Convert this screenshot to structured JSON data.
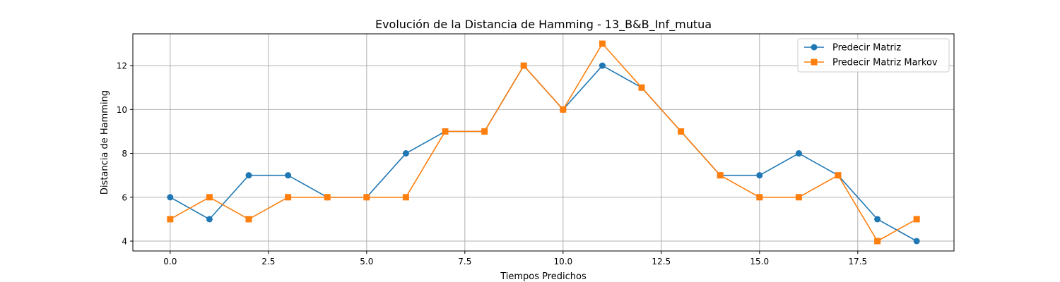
{
  "chart_data": {
    "type": "line",
    "title": "Evolución de la Distancia de Hamming - 13_B&B_Inf_mutua",
    "xlabel": "Tiempos Predichos",
    "ylabel": "Distancia de Hamming",
    "xlim": [
      -0.95,
      19.95
    ],
    "ylim": [
      3.55,
      13.45
    ],
    "xticks": [
      0.0,
      2.5,
      5.0,
      7.5,
      10.0,
      12.5,
      15.0,
      17.5
    ],
    "xtick_labels": [
      "0.0",
      "2.5",
      "5.0",
      "7.5",
      "10.0",
      "12.5",
      "15.0",
      "17.5"
    ],
    "yticks": [
      4,
      6,
      8,
      10,
      12
    ],
    "ytick_labels": [
      "4",
      "6",
      "8",
      "10",
      "12"
    ],
    "grid": true,
    "legend_position": "top-right",
    "x": [
      0,
      1,
      2,
      3,
      4,
      5,
      6,
      7,
      8,
      9,
      10,
      11,
      12,
      13,
      14,
      15,
      16,
      17,
      18,
      19
    ],
    "series": [
      {
        "name": "Predecir Matriz",
        "color": "#1f77b4",
        "marker": "circle",
        "values": [
          6,
          5,
          7,
          7,
          6,
          6,
          8,
          9,
          9,
          12,
          10,
          12,
          11,
          9,
          7,
          7,
          8,
          7,
          5,
          4
        ]
      },
      {
        "name": "Predecir Matriz Markov",
        "color": "#ff7f0e",
        "marker": "square",
        "values": [
          5,
          6,
          5,
          6,
          6,
          6,
          6,
          9,
          9,
          12,
          10,
          13,
          11,
          9,
          7,
          6,
          6,
          7,
          4,
          5
        ]
      }
    ]
  }
}
